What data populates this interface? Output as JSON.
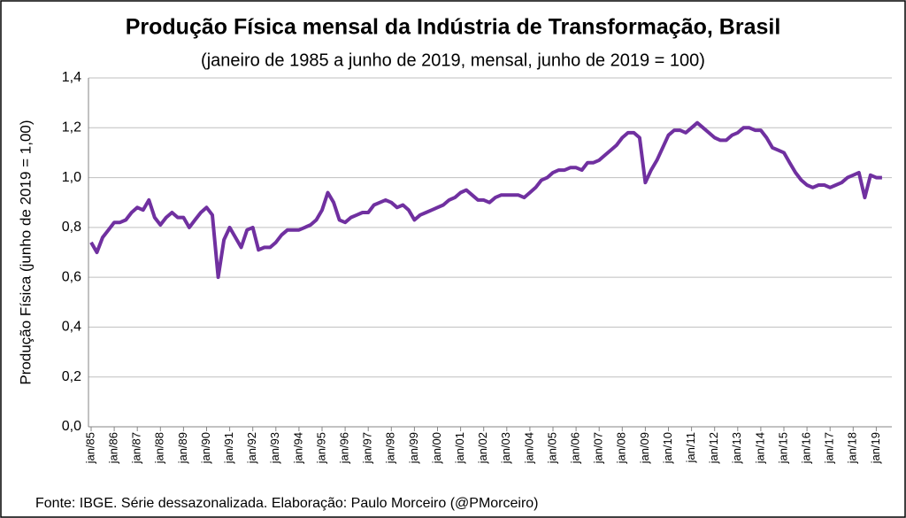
{
  "chart_data": {
    "type": "line",
    "title": "Produção Física mensal da Indústria de Transformação, Brasil",
    "subtitle": "(janeiro de 1985 a junho de 2019, mensal, junho de 2019 = 100)",
    "y_label": "Produção Física (junho de 2019 = 1,00)",
    "source": "Fonte: IBGE. Série dessazonalizada. Elaboração: Paulo Morceiro (@PMorceiro)",
    "categories": [
      "jan/85",
      null,
      null,
      null,
      "jan/86",
      null,
      null,
      null,
      "jan/87",
      null,
      null,
      null,
      "jan/88",
      null,
      null,
      null,
      "jan/89",
      null,
      null,
      null,
      "jan/90",
      null,
      null,
      null,
      "jan/91",
      null,
      null,
      null,
      "jan/92",
      null,
      null,
      null,
      "jan/93",
      null,
      null,
      null,
      "jan/94",
      null,
      null,
      null,
      "jan/95",
      null,
      null,
      null,
      "jan/96",
      null,
      null,
      null,
      "jan/97",
      null,
      null,
      null,
      "jan/98",
      null,
      null,
      null,
      "jan/99",
      null,
      null,
      null,
      "jan/00",
      null,
      null,
      null,
      "jan/01",
      null,
      null,
      null,
      "jan/02",
      null,
      null,
      null,
      "jan/03",
      null,
      null,
      null,
      "jan/04",
      null,
      null,
      null,
      "jan/05",
      null,
      null,
      null,
      "jan/06",
      null,
      null,
      null,
      "jan/07",
      null,
      null,
      null,
      "jan/08",
      null,
      null,
      null,
      "jan/09",
      null,
      null,
      null,
      "jan/10",
      null,
      null,
      null,
      "jan/11",
      null,
      null,
      null,
      "jan/12",
      null,
      null,
      null,
      "jan/13",
      null,
      null,
      null,
      "jan/14",
      null,
      null,
      null,
      "jan/15",
      null,
      null,
      null,
      "jan/16",
      null,
      null,
      null,
      "jan/17",
      null,
      null,
      null,
      "jan/18",
      null,
      null,
      null,
      "jan/19",
      null
    ],
    "series": [
      {
        "color": "#7030a0",
        "values": [
          0.74,
          0.7,
          0.76,
          0.79,
          0.82,
          0.82,
          0.83,
          0.86,
          0.88,
          0.87,
          0.91,
          0.84,
          0.81,
          0.84,
          0.86,
          0.84,
          0.84,
          0.8,
          0.83,
          0.86,
          0.88,
          0.85,
          0.6,
          0.75,
          0.8,
          0.76,
          0.72,
          0.79,
          0.8,
          0.71,
          0.72,
          0.72,
          0.74,
          0.77,
          0.79,
          0.79,
          0.79,
          0.8,
          0.81,
          0.83,
          0.87,
          0.94,
          0.9,
          0.83,
          0.82,
          0.84,
          0.85,
          0.86,
          0.86,
          0.89,
          0.9,
          0.91,
          0.9,
          0.88,
          0.89,
          0.87,
          0.83,
          0.85,
          0.86,
          0.87,
          0.88,
          0.89,
          0.91,
          0.92,
          0.94,
          0.95,
          0.93,
          0.91,
          0.91,
          0.9,
          0.92,
          0.93,
          0.93,
          0.93,
          0.93,
          0.92,
          0.94,
          0.96,
          0.99,
          1.0,
          1.02,
          1.03,
          1.03,
          1.04,
          1.04,
          1.03,
          1.06,
          1.06,
          1.07,
          1.09,
          1.11,
          1.13,
          1.16,
          1.18,
          1.18,
          1.16,
          0.98,
          1.03,
          1.07,
          1.12,
          1.17,
          1.19,
          1.19,
          1.18,
          1.2,
          1.22,
          1.2,
          1.18,
          1.16,
          1.15,
          1.15,
          1.17,
          1.18,
          1.2,
          1.2,
          1.19,
          1.19,
          1.16,
          1.12,
          1.11,
          1.1,
          1.06,
          1.02,
          0.99,
          0.97,
          0.96,
          0.97,
          0.97,
          0.96,
          0.97,
          0.98,
          1.0,
          1.01,
          1.02,
          0.92,
          1.01,
          1.0,
          1.0
        ]
      }
    ],
    "ylim": [
      0,
      1.4
    ],
    "yticks": [
      {
        "value": 0,
        "label": "0,0"
      },
      {
        "value": 0.2,
        "label": "0,2"
      },
      {
        "value": 0.4,
        "label": "0,4"
      },
      {
        "value": 0.6,
        "label": "0,6"
      },
      {
        "value": 0.8,
        "label": "0,8"
      },
      {
        "value": 1.0,
        "label": "1,0"
      },
      {
        "value": 1.2,
        "label": "1,2"
      },
      {
        "value": 1.4,
        "label": "1,4"
      }
    ],
    "grid": true
  }
}
